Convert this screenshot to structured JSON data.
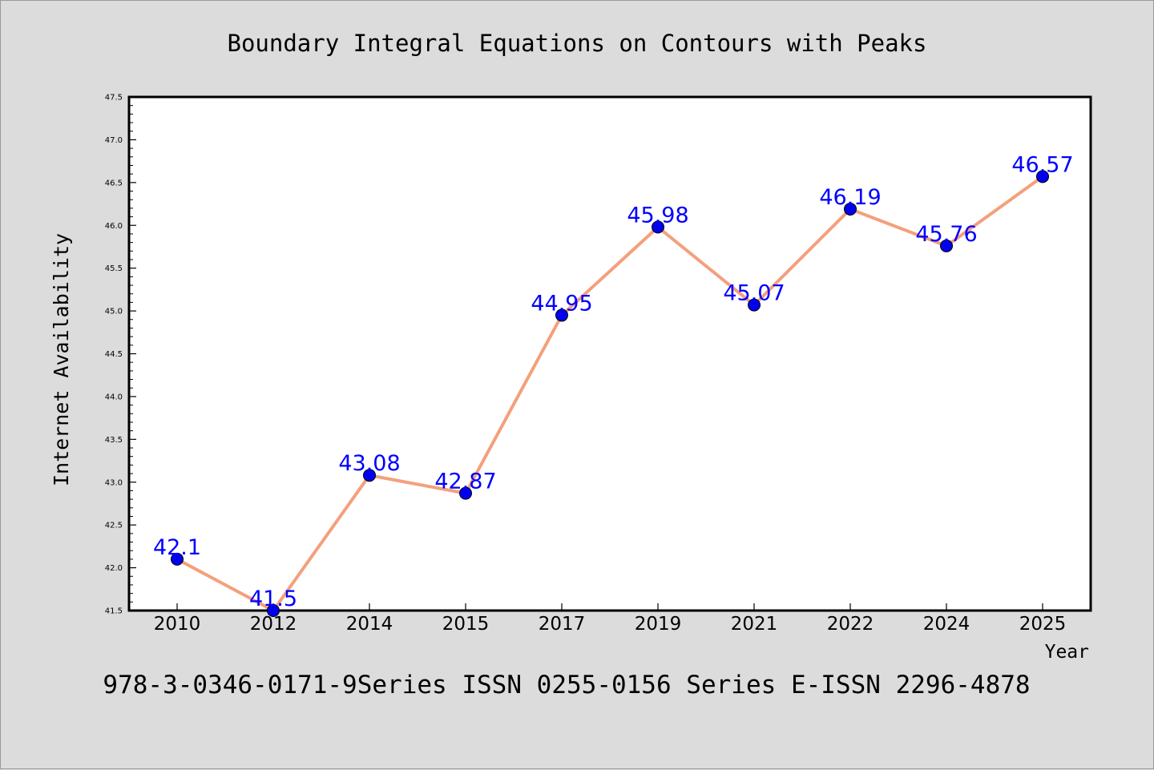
{
  "chart_data": {
    "type": "line",
    "title": "Boundary Integral Equations on Contours with Peaks",
    "footer": "978-3-0346-0171-9Series ISSN 0255-0156 Series E-ISSN 2296-4878",
    "xlabel": "Year",
    "ylabel": "Internet Availability",
    "categories": [
      "2010",
      "2012",
      "2014",
      "2015",
      "2017",
      "2019",
      "2021",
      "2022",
      "2024",
      "2025"
    ],
    "series": [
      {
        "values": [
          42.1,
          41.5,
          43.08,
          42.87,
          44.95,
          45.98,
          45.07,
          46.19,
          45.76,
          46.57
        ],
        "data_labels": [
          "42.1",
          "41.5",
          "43.08",
          "42.87",
          "44.95",
          "45.98",
          "45.07",
          "46.19",
          "45.76",
          "46.57"
        ],
        "line_color": "#f4a07c",
        "marker_color": "#0000ee",
        "label_color": "#0000ff"
      }
    ],
    "ylim": [
      41.5,
      47.5
    ],
    "yticks": [
      "41.5",
      "42.0",
      "42.5",
      "43.0",
      "43.5",
      "44.0",
      "44.5",
      "45.0",
      "45.5",
      "46.0",
      "46.5",
      "47.0",
      "47.5"
    ],
    "grid": false,
    "legend": "none",
    "colors": {
      "background": "#dcdcdc",
      "plot_area": "#ffffff",
      "axis": "#000000"
    }
  }
}
